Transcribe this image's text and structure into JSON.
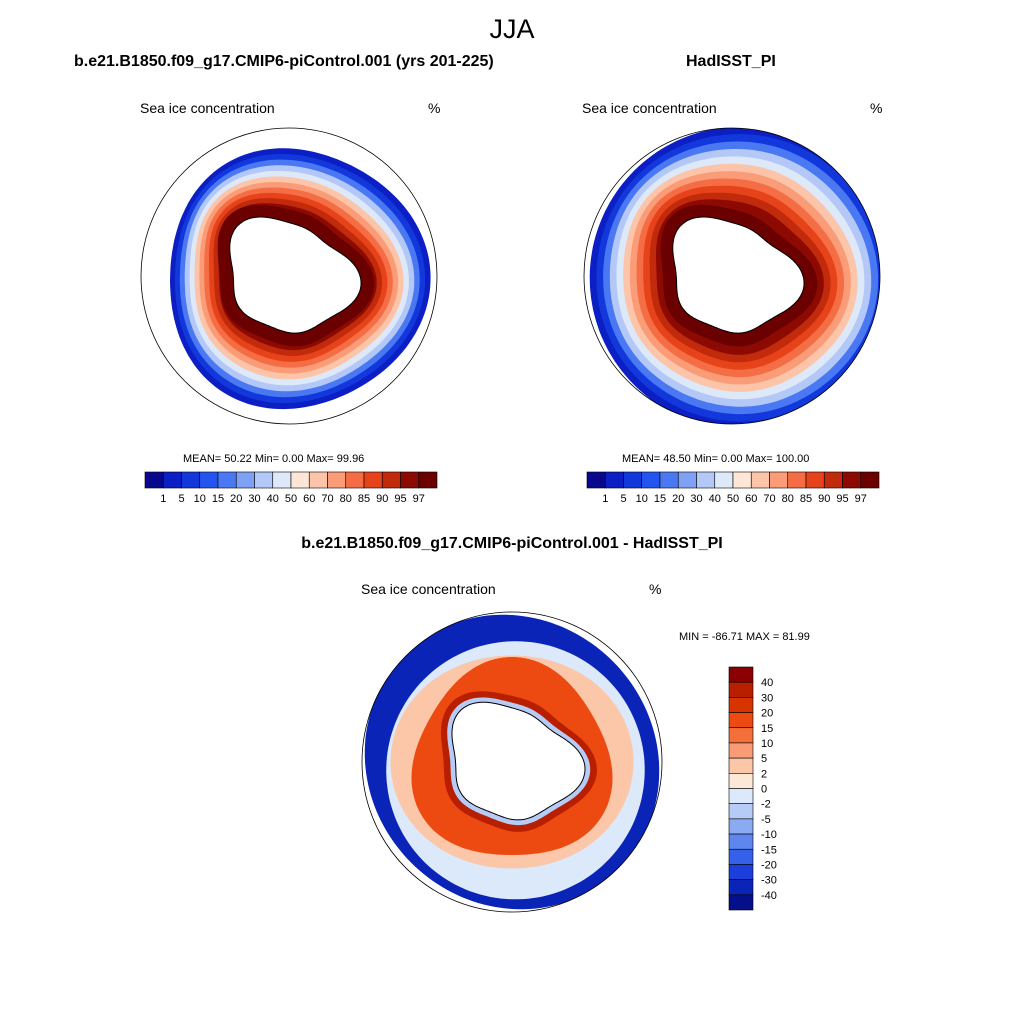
{
  "figure": {
    "title": "JJA",
    "variable": "Sea ice concentration",
    "units": "%"
  },
  "chart_data": [
    {
      "type": "heatmap",
      "panel": "model",
      "title": "b.e21.B1850.f09_g17.CMIP6-piControl.001 (yrs 201-225)",
      "subtitle": "Sea ice concentration",
      "units": "%",
      "projection": "south polar stereographic",
      "stats_text": "MEAN=  50.22  Min=   0.00  Max=  99.96",
      "stats": {
        "mean": 50.22,
        "min": 0.0,
        "max": 99.96
      },
      "colorbar": {
        "levels": [
          "1",
          "5",
          "10",
          "15",
          "20",
          "30",
          "40",
          "50",
          "60",
          "70",
          "80",
          "85",
          "90",
          "95",
          "97"
        ],
        "colors": [
          "#08088f",
          "#0b1fc4",
          "#1238dc",
          "#2255ef",
          "#4a78f3",
          "#7fa1f5",
          "#b4c8f7",
          "#dde9f9",
          "#fde6d6",
          "#fcc5a9",
          "#fa9c77",
          "#f56d44",
          "#e6431b",
          "#c22a0c",
          "#8c0a02",
          "#6a0000"
        ]
      },
      "ice_edge_latitude_estimate": {
        "inner_pack_pct": 97,
        "edge_pct": 1
      }
    },
    {
      "type": "heatmap",
      "panel": "observation",
      "title": "HadISST_PI",
      "subtitle": "Sea ice concentration",
      "units": "%",
      "projection": "south polar stereographic",
      "stats_text": "MEAN=  48.50  Min=   0.00  Max= 100.00",
      "stats": {
        "mean": 48.5,
        "min": 0.0,
        "max": 100.0
      },
      "colorbar": {
        "levels": [
          "1",
          "5",
          "10",
          "15",
          "20",
          "30",
          "40",
          "50",
          "60",
          "70",
          "80",
          "85",
          "90",
          "95",
          "97"
        ],
        "colors": [
          "#08088f",
          "#0b1fc4",
          "#1238dc",
          "#2255ef",
          "#4a78f3",
          "#7fa1f5",
          "#b4c8f7",
          "#dde9f9",
          "#fde6d6",
          "#fcc5a9",
          "#fa9c77",
          "#f56d44",
          "#e6431b",
          "#c22a0c",
          "#8c0a02",
          "#6a0000"
        ]
      }
    },
    {
      "type": "heatmap",
      "panel": "difference",
      "title": "b.e21.B1850.f09_g17.CMIP6-piControl.001 - HadISST_PI",
      "subtitle": "Sea ice concentration",
      "units": "%",
      "projection": "south polar stereographic",
      "stats_text": "MIN = -86.71 MAX =  81.99",
      "stats": {
        "min": -86.71,
        "max": 81.99
      },
      "colorbar": {
        "orientation": "vertical",
        "levels": [
          "40",
          "30",
          "20",
          "15",
          "10",
          "5",
          "2",
          "0",
          "-2",
          "-5",
          "-10",
          "-15",
          "-20",
          "-30",
          "-40"
        ],
        "colors": [
          "#8b0000",
          "#b81f00",
          "#d83400",
          "#ec4a10",
          "#f56f3a",
          "#f99b74",
          "#fcc6a8",
          "#fde8d8",
          "#dbe9fb",
          "#b6cbf5",
          "#8aaaf2",
          "#5e86ee",
          "#3561ea",
          "#1a3fdb",
          "#0b24b8",
          "#050f8a"
        ]
      }
    }
  ]
}
